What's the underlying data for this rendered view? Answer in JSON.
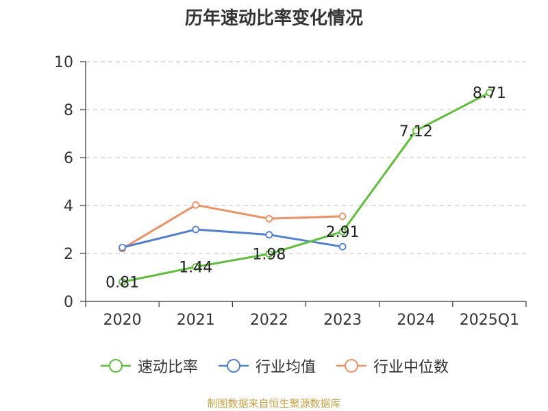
{
  "chart_data": {
    "type": "line",
    "title": "历年速动比率变化情况",
    "categories": [
      "2020",
      "2021",
      "2022",
      "2023",
      "2024",
      "2025Q1"
    ],
    "ylim": [
      0,
      10
    ],
    "yticks": [
      0,
      2,
      4,
      6,
      8,
      10
    ],
    "grid": true,
    "legend_position": "bottom",
    "series": [
      {
        "name": "速动比率",
        "color": "#5ac034",
        "values": [
          0.81,
          1.44,
          1.98,
          2.91,
          7.12,
          8.71
        ],
        "labels": [
          "0.81",
          "1.44",
          "1.98",
          "2.91",
          "7.12",
          "8.71"
        ]
      },
      {
        "name": "行业均值",
        "color": "#4e80d6",
        "values": [
          2.25,
          3.0,
          2.78,
          2.28,
          null,
          null
        ],
        "labels": []
      },
      {
        "name": "行业中位数",
        "color": "#f38f5e",
        "values": [
          2.2,
          4.02,
          3.45,
          3.55,
          null,
          null
        ],
        "labels": []
      }
    ]
  },
  "source": "制图数据来自恒生聚源数据库"
}
